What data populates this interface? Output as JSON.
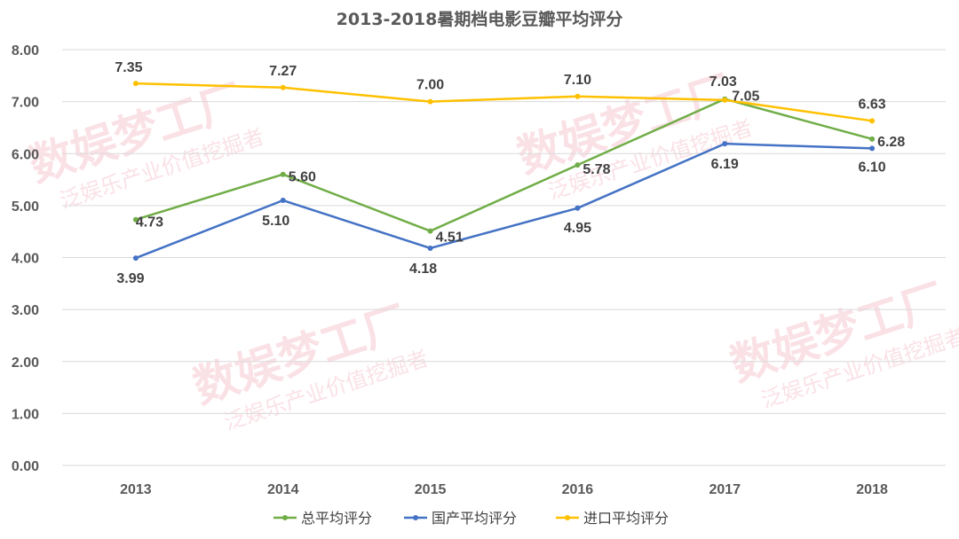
{
  "watermark": {
    "main": "数娱梦工厂",
    "sub": "泛娱乐产业价值挖掘者"
  },
  "chart_data": {
    "type": "line",
    "title": "2013-2018暑期档电影豆瓣平均评分",
    "categories": [
      "2013",
      "2014",
      "2015",
      "2016",
      "2017",
      "2018"
    ],
    "ylim": [
      0,
      8
    ],
    "yticks": [
      "0.00",
      "1.00",
      "2.00",
      "3.00",
      "4.00",
      "5.00",
      "6.00",
      "7.00",
      "8.00"
    ],
    "grid": true,
    "legend_position": "bottom",
    "series": [
      {
        "name": "总平均评分",
        "color": "#70ad47",
        "values": [
          4.73,
          5.6,
          4.51,
          5.78,
          7.05,
          6.28
        ],
        "labels": [
          "4.73",
          "5.60",
          "4.51",
          "5.78",
          "7.05",
          "6.28"
        ]
      },
      {
        "name": "国产平均评分",
        "color": "#4472c4",
        "values": [
          3.99,
          5.1,
          4.18,
          4.95,
          6.19,
          6.1
        ],
        "labels": [
          "3.99",
          "5.10",
          "4.18",
          "4.95",
          "6.19",
          "6.10"
        ]
      },
      {
        "name": "进口平均评分",
        "color": "#ffc000",
        "values": [
          7.35,
          7.27,
          7.0,
          7.1,
          7.03,
          6.63
        ],
        "labels": [
          "7.35",
          "7.27",
          "7.00",
          "7.10",
          "7.03",
          "6.63"
        ]
      }
    ]
  }
}
